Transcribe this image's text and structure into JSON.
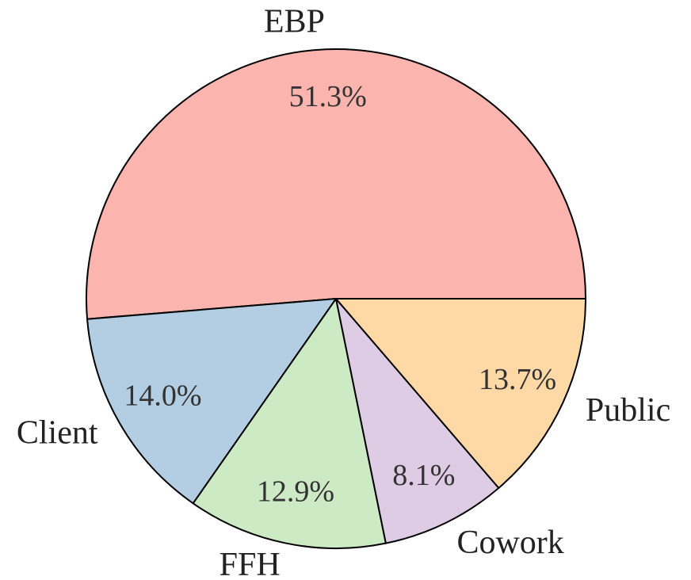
{
  "chart_data": {
    "type": "pie",
    "categories": [
      "EBP",
      "Client",
      "FFH",
      "Cowork",
      "Public"
    ],
    "values": [
      51.3,
      14.0,
      12.9,
      8.1,
      13.7
    ],
    "value_labels": [
      "51.3%",
      "14.0%",
      "12.9%",
      "8.1%",
      "13.7%"
    ],
    "colors": [
      "#fbb4ae",
      "#b3cde3",
      "#ccebc5",
      "#decbe4",
      "#fed9a6"
    ]
  }
}
